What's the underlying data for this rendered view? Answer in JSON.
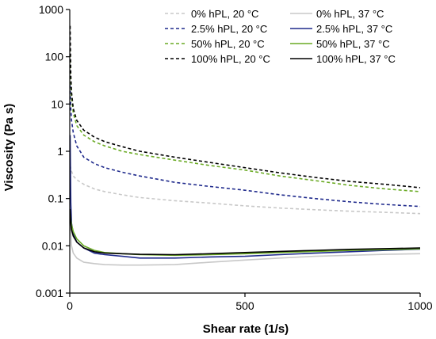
{
  "chart_data": {
    "type": "line",
    "title": "",
    "xlabel": "Shear rate (1/s)",
    "ylabel": "Viscosity (Pa s)",
    "xlim": [
      0,
      1000
    ],
    "ylim": [
      0.001,
      1000
    ],
    "yscale": "log",
    "grid": false,
    "legend_position": "top-right",
    "x_ticks": [
      0,
      500,
      1000
    ],
    "y_ticks": [
      0.001,
      0.01,
      0.1,
      1,
      10,
      100,
      1000
    ],
    "y_tick_labels": [
      "0.001",
      "0.01",
      "0.1",
      "1",
      "10",
      "100",
      "1000"
    ],
    "series": [
      {
        "name": "0% hPL, 20 °C",
        "color": "#c8c8c8",
        "dashed": true,
        "x": [
          1,
          5,
          10,
          20,
          40,
          70,
          100,
          150,
          200,
          300,
          400,
          500,
          600,
          700,
          800,
          900,
          1000
        ],
        "y": [
          0.5,
          0.38,
          0.3,
          0.25,
          0.2,
          0.16,
          0.14,
          0.12,
          0.105,
          0.09,
          0.08,
          0.07,
          0.063,
          0.058,
          0.054,
          0.051,
          0.048
        ]
      },
      {
        "name": "0% hPL, 37 °C",
        "color": "#c8c8c8",
        "dashed": false,
        "x": [
          1,
          3,
          5,
          10,
          20,
          40,
          70,
          100,
          150,
          200,
          300,
          400,
          500,
          600,
          700,
          800,
          900,
          1000
        ],
        "y": [
          0.4,
          0.02,
          0.01,
          0.007,
          0.0055,
          0.0045,
          0.0042,
          0.004,
          0.0039,
          0.0039,
          0.004,
          0.0045,
          0.005,
          0.0055,
          0.006,
          0.0063,
          0.0066,
          0.0068
        ]
      },
      {
        "name": "2.5% hPL, 20 °C",
        "color": "#1f2a8c",
        "dashed": true,
        "x": [
          1,
          3,
          5,
          10,
          20,
          40,
          70,
          100,
          150,
          200,
          300,
          400,
          500,
          600,
          700,
          800,
          900,
          1000
        ],
        "y": [
          25,
          8,
          4.5,
          2.5,
          1.3,
          0.75,
          0.55,
          0.45,
          0.36,
          0.3,
          0.22,
          0.18,
          0.15,
          0.12,
          0.1,
          0.085,
          0.075,
          0.068
        ]
      },
      {
        "name": "2.5% hPL, 37 °C",
        "color": "#1f2a8c",
        "dashed": false,
        "x": [
          1,
          3,
          5,
          10,
          20,
          40,
          70,
          100,
          150,
          200,
          300,
          400,
          500,
          600,
          700,
          800,
          900,
          1000
        ],
        "y": [
          2.2,
          0.08,
          0.03,
          0.018,
          0.012,
          0.009,
          0.007,
          0.0065,
          0.006,
          0.0055,
          0.0055,
          0.0058,
          0.006,
          0.0065,
          0.007,
          0.0075,
          0.008,
          0.0085
        ]
      },
      {
        "name": "50% hPL, 20 °C",
        "color": "#6aaa24",
        "dashed": true,
        "x": [
          1,
          3,
          5,
          10,
          20,
          40,
          70,
          100,
          150,
          200,
          300,
          400,
          500,
          600,
          700,
          800,
          900,
          1000
        ],
        "y": [
          150,
          30,
          14,
          6.5,
          3.5,
          2.2,
          1.6,
          1.3,
          1.0,
          0.85,
          0.65,
          0.5,
          0.4,
          0.3,
          0.24,
          0.19,
          0.16,
          0.14
        ]
      },
      {
        "name": "50% hPL, 37 °C",
        "color": "#6aaa24",
        "dashed": false,
        "x": [
          1,
          3,
          5,
          10,
          20,
          40,
          70,
          100,
          150,
          200,
          300,
          400,
          500,
          600,
          700,
          800,
          900,
          1000
        ],
        "y": [
          0.05,
          0.035,
          0.028,
          0.02,
          0.014,
          0.01,
          0.008,
          0.0072,
          0.0068,
          0.0065,
          0.0063,
          0.0065,
          0.0068,
          0.0072,
          0.0076,
          0.008,
          0.0083,
          0.0086
        ]
      },
      {
        "name": "100% hPL, 20 °C",
        "color": "#000000",
        "dashed": true,
        "x": [
          1,
          3,
          5,
          10,
          20,
          40,
          70,
          100,
          150,
          200,
          300,
          400,
          500,
          600,
          700,
          800,
          900,
          1000
        ],
        "y": [
          450,
          40,
          18,
          8,
          4.5,
          2.8,
          2.0,
          1.6,
          1.25,
          1.0,
          0.75,
          0.58,
          0.45,
          0.35,
          0.28,
          0.23,
          0.2,
          0.17
        ]
      },
      {
        "name": "100% hPL, 37 °C",
        "color": "#000000",
        "dashed": false,
        "x": [
          1,
          3,
          5,
          10,
          20,
          40,
          70,
          100,
          150,
          200,
          300,
          400,
          500,
          600,
          700,
          800,
          900,
          1000
        ],
        "y": [
          0.06,
          0.03,
          0.022,
          0.016,
          0.012,
          0.009,
          0.0075,
          0.007,
          0.0068,
          0.0066,
          0.0065,
          0.0068,
          0.0072,
          0.0076,
          0.008,
          0.0084,
          0.0087,
          0.009
        ]
      }
    ]
  }
}
